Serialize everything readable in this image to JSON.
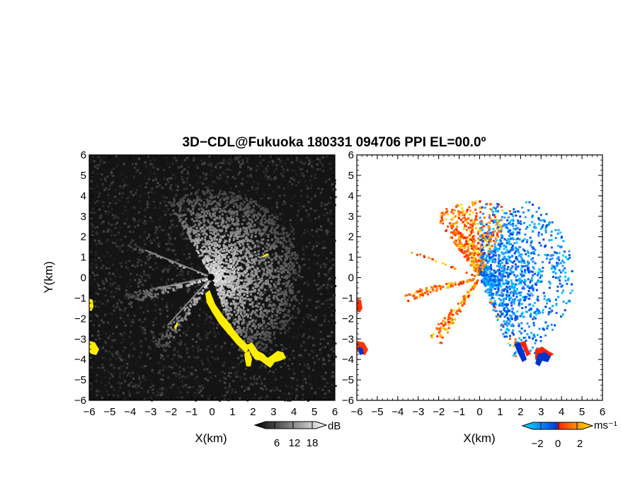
{
  "title": "3D−CDL@Fukuoka 180331 094706 PPI EL=00.0º",
  "chart_data": [
    {
      "type": "heatmap",
      "name": "snr",
      "xlabel": "X(km)",
      "ylabel": "Y(km)",
      "xlim": [
        -6,
        6
      ],
      "ylim": [
        -6,
        6
      ],
      "x_ticks": [
        "−6",
        "−5",
        "−4",
        "−3",
        "−2",
        "−1",
        "0",
        "1",
        "2",
        "3",
        "4",
        "5",
        "6"
      ],
      "y_ticks": [
        "6",
        "5",
        "4",
        "3",
        "2",
        "1",
        "0",
        "−1",
        "−2",
        "−3",
        "−4",
        "−5",
        "−6"
      ],
      "colorbar": {
        "unit": "dB",
        "ticks": [
          "6",
          "12",
          "18"
        ],
        "colors": [
          "#000000",
          "#555555",
          "#aaaaaa",
          "#ffffff"
        ]
      },
      "highlight_color": "#ffee00"
    },
    {
      "type": "heatmap",
      "name": "radial-velocity",
      "xlabel": "X(km)",
      "xlim": [
        -6,
        6
      ],
      "ylim": [
        -6,
        6
      ],
      "x_ticks": [
        "−6",
        "−5",
        "−4",
        "−3",
        "−2",
        "−1",
        "0",
        "1",
        "2",
        "3",
        "4",
        "5",
        "6"
      ],
      "y_ticks": [
        "6",
        "5",
        "4",
        "3",
        "2",
        "1",
        "0",
        "−1",
        "−2",
        "−3",
        "−4",
        "−5",
        "−6"
      ],
      "colorbar": {
        "unit": "ms⁻¹",
        "ticks": [
          "−2",
          "0",
          "2"
        ],
        "colors": [
          "#00ccff",
          "#0066ff",
          "#ff3300",
          "#ff9900",
          "#ffdd00"
        ]
      }
    }
  ]
}
